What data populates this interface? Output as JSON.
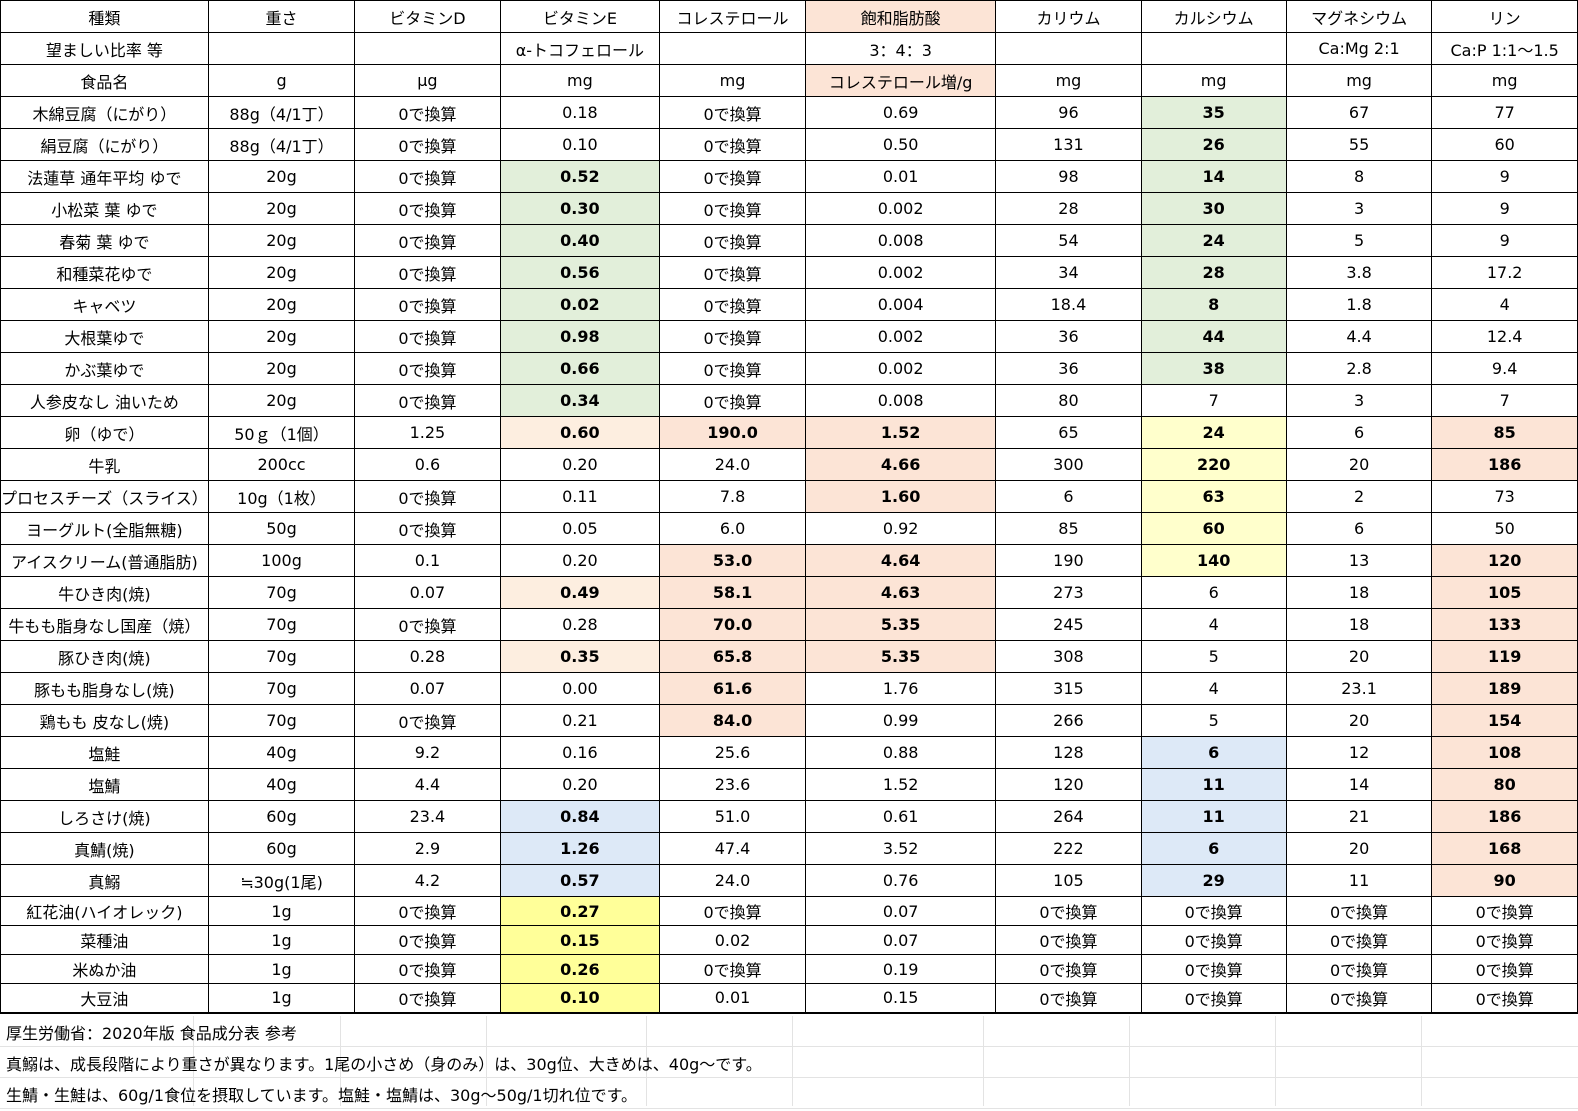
{
  "header": {
    "row1": [
      "種類",
      "重さ",
      "ビタミンD",
      "ビタミンE",
      "コレステロール",
      "飽和脂肪酸",
      "カリウム",
      "カルシウム",
      "マグネシウム",
      "リン"
    ],
    "row2": [
      "望ましい比率 等",
      "",
      "",
      "α-トコフェロール",
      "",
      "3：4：3",
      "",
      "",
      "Ca:Mg 2:1",
      "Ca:P 1:1～1.5"
    ],
    "row3": [
      "食品名",
      "g",
      "μg",
      "mg",
      "mg",
      "コレステロール増/g",
      "mg",
      "mg",
      "mg",
      "mg"
    ]
  },
  "rows": [
    [
      "木綿豆腐（にがり）",
      "88g（4/1丁）",
      "0で換算",
      "0.18",
      "0で換算",
      "0.69",
      "96",
      "35",
      "67",
      "77"
    ],
    [
      "絹豆腐（にがり）",
      "88g（4/1丁）",
      "0で換算",
      "0.10",
      "0で換算",
      "0.50",
      "131",
      "26",
      "55",
      "60"
    ],
    [
      "法蓮草 通年平均 ゆで",
      "20g",
      "0で換算",
      "0.52",
      "0で換算",
      "0.01",
      "98",
      "14",
      "8",
      "9"
    ],
    [
      "小松菜 葉 ゆで",
      "20g",
      "0で換算",
      "0.30",
      "0で換算",
      "0.002",
      "28",
      "30",
      "3",
      "9"
    ],
    [
      "春菊 葉 ゆで",
      "20g",
      "0で換算",
      "0.40",
      "0で換算",
      "0.008",
      "54",
      "24",
      "5",
      "9"
    ],
    [
      "和種菜花ゆで",
      "20g",
      "0で換算",
      "0.56",
      "0で換算",
      "0.002",
      "34",
      "28",
      "3.8",
      "17.2"
    ],
    [
      "キャベツ",
      "20g",
      "0で換算",
      "0.02",
      "0で換算",
      "0.004",
      "18.4",
      "8",
      "1.8",
      "4"
    ],
    [
      "大根葉ゆで",
      "20g",
      "0で換算",
      "0.98",
      "0で換算",
      "0.002",
      "36",
      "44",
      "4.4",
      "12.4"
    ],
    [
      "かぶ葉ゆで",
      "20g",
      "0で換算",
      "0.66",
      "0で換算",
      "0.002",
      "36",
      "38",
      "2.8",
      "9.4"
    ],
    [
      "人参皮なし 油いため",
      "20g",
      "0で換算",
      "0.34",
      "0で換算",
      "0.008",
      "80",
      "7",
      "3",
      "7"
    ],
    [
      "卵（ゆで）",
      "50ｇ（1個）",
      "1.25",
      "0.60",
      "190.0",
      "1.52",
      "65",
      "24",
      "6",
      "85"
    ],
    [
      "牛乳",
      "200cc",
      "0.6",
      "0.20",
      "24.0",
      "4.66",
      "300",
      "220",
      "20",
      "186"
    ],
    [
      "プロセスチーズ（スライス）",
      "10g（1枚）",
      "0で換算",
      "0.11",
      "7.8",
      "1.60",
      "6",
      "63",
      "2",
      "73"
    ],
    [
      "ヨーグルト(全脂無糖)",
      "50g",
      "0で換算",
      "0.05",
      "6.0",
      "0.92",
      "85",
      "60",
      "6",
      "50"
    ],
    [
      "アイスクリーム(普通脂肪)",
      "100g",
      "0.1",
      "0.20",
      "53.0",
      "4.64",
      "190",
      "140",
      "13",
      "120"
    ],
    [
      "牛ひき肉(焼)",
      "70g",
      "0.07",
      "0.49",
      "58.1",
      "4.63",
      "273",
      "6",
      "18",
      "105"
    ],
    [
      "牛もも脂身なし国産（焼）",
      "70g",
      "0で換算",
      "0.28",
      "70.0",
      "5.35",
      "245",
      "4",
      "18",
      "133"
    ],
    [
      "豚ひき肉(焼)",
      "70g",
      "0.28",
      "0.35",
      "65.8",
      "5.35",
      "308",
      "5",
      "20",
      "119"
    ],
    [
      "豚もも脂身なし(焼)",
      "70g",
      "0.07",
      "0.00",
      "61.6",
      "1.76",
      "315",
      "4",
      "23.1",
      "189"
    ],
    [
      "鶏もも 皮なし(焼)",
      "70g",
      "0で換算",
      "0.21",
      "84.0",
      "0.99",
      "266",
      "5",
      "20",
      "154"
    ],
    [
      "塩鮭",
      "40g",
      "9.2",
      "0.16",
      "25.6",
      "0.88",
      "128",
      "6",
      "12",
      "108"
    ],
    [
      "塩鯖",
      "40g",
      "4.4",
      "0.20",
      "23.6",
      "1.52",
      "120",
      "11",
      "14",
      "80"
    ],
    [
      "しろさけ(焼)",
      "60g",
      "23.4",
      "0.84",
      "51.0",
      "0.61",
      "264",
      "11",
      "21",
      "186"
    ],
    [
      "真鯖(焼)",
      "60g",
      "2.9",
      "1.26",
      "47.4",
      "3.52",
      "222",
      "6",
      "20",
      "168"
    ],
    [
      "真鰯",
      "≒30g(1尾)",
      "4.2",
      "0.57",
      "24.0",
      "0.76",
      "105",
      "29",
      "11",
      "90"
    ],
    [
      "紅花油(ハイオレック)",
      "1g",
      "0で換算",
      "0.27",
      "0で換算",
      "0.07",
      "0で換算",
      "0で換算",
      "0で換算",
      "0で換算"
    ],
    [
      "菜種油",
      "1g",
      "0で換算",
      "0.15",
      "0.02",
      "0.07",
      "0で換算",
      "0で換算",
      "0で換算",
      "0で換算"
    ],
    [
      "米ぬか油",
      "1g",
      "0で換算",
      "0.26",
      "0で換算",
      "0.19",
      "0で換算",
      "0で換算",
      "0で換算",
      "0で換算"
    ],
    [
      "大豆油",
      "1g",
      "0で換算",
      "0.10",
      "0.01",
      "0.15",
      "0で換算",
      "0で換算",
      "0で換算",
      "0で換算"
    ]
  ],
  "colors": {
    "green": "#e2efda",
    "light_yellow": "#ffffcc",
    "yellow": "#ffff99",
    "salmon": "#fce4d6",
    "peach": "#fdeee0",
    "blue": "#dde9f7"
  },
  "notes": [
    "厚生労働省：2020年版 食品成分表 参考",
    "真鰯は、成長段階により重さが異なります。1尾の小さめ（身のみ）は、30g位、大きめは、40g～です。",
    "生鯖・生鮭は、60g/1食位を摂取しています。塩鮭・塩鯖は、30g～50g/1切れ位です。"
  ]
}
